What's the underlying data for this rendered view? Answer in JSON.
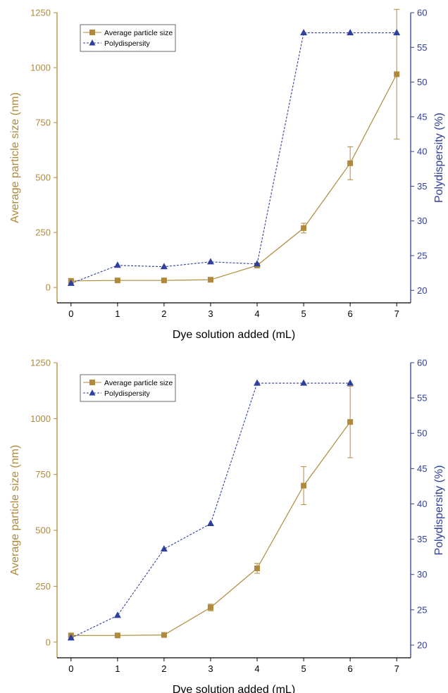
{
  "colors": {
    "size_series": "#b08a3c",
    "size_axis": "#b08a3c",
    "polydispersity_series": "#2e3f9e",
    "polydispersity_axis": "#2e3f9e",
    "axis": "#000000"
  },
  "chart_data": [
    {
      "type": "line",
      "xlabel": "Dye solution added (mL)",
      "ylabel": "Average particle size (nm)",
      "y2label": "Polydispersity (%)",
      "x_ticks": [
        "0",
        "1",
        "2",
        "3",
        "4",
        "5",
        "6",
        "7"
      ],
      "y_ticks": [
        "0",
        "250",
        "500",
        "750",
        "1000",
        "1250"
      ],
      "y2_ticks": [
        "20",
        "25",
        "30",
        "35",
        "40",
        "45",
        "50",
        "55",
        "60"
      ],
      "xlim": [
        -0.3,
        7.3
      ],
      "ylim": [
        -70,
        1250
      ],
      "y2lim": [
        18.2,
        60
      ],
      "legend_position": "top-left",
      "series": [
        {
          "name": "Average particle size",
          "axis": "left",
          "marker": "square",
          "line": "solid",
          "x": [
            0,
            1,
            2,
            3,
            4,
            5,
            6,
            7
          ],
          "y": [
            30,
            32,
            32,
            35,
            100,
            270,
            565,
            970
          ],
          "err": [
            8,
            5,
            5,
            5,
            10,
            22,
            75,
            295
          ]
        },
        {
          "name": "Polydispersity",
          "axis": "right",
          "marker": "triangle",
          "line": "dashed",
          "x": [
            0,
            1,
            2,
            3,
            4,
            5,
            6,
            7
          ],
          "y": [
            21,
            23.6,
            23.4,
            24.1,
            23.8,
            57.1,
            57.1,
            57.1
          ]
        }
      ]
    },
    {
      "type": "line",
      "xlabel": "Dye solution added (mL)",
      "ylabel": "Average particle size (nm)",
      "y2label": "Polydispersity (%)",
      "x_ticks": [
        "0",
        "1",
        "2",
        "3",
        "4",
        "5",
        "6",
        "7"
      ],
      "y_ticks": [
        "0",
        "250",
        "500",
        "750",
        "1000",
        "1250"
      ],
      "y2_ticks": [
        "20",
        "25",
        "30",
        "35",
        "40",
        "45",
        "50",
        "55",
        "60"
      ],
      "xlim": [
        -0.3,
        7.3
      ],
      "ylim": [
        -70,
        1250
      ],
      "y2lim": [
        18.2,
        60
      ],
      "legend_position": "top-left",
      "series": [
        {
          "name": "Average particle size",
          "axis": "left",
          "marker": "square",
          "line": "solid",
          "x": [
            0,
            1,
            2,
            3,
            4,
            5,
            6
          ],
          "y": [
            30,
            30,
            32,
            155,
            330,
            700,
            985
          ],
          "err": [
            5,
            5,
            5,
            15,
            22,
            85,
            160
          ]
        },
        {
          "name": "Polydispersity",
          "axis": "right",
          "marker": "triangle",
          "line": "dashed",
          "x": [
            0,
            1,
            2,
            3,
            4,
            5,
            6
          ],
          "y": [
            21,
            24.2,
            33.6,
            37.2,
            57.1,
            57.1,
            57.1
          ]
        }
      ]
    }
  ]
}
